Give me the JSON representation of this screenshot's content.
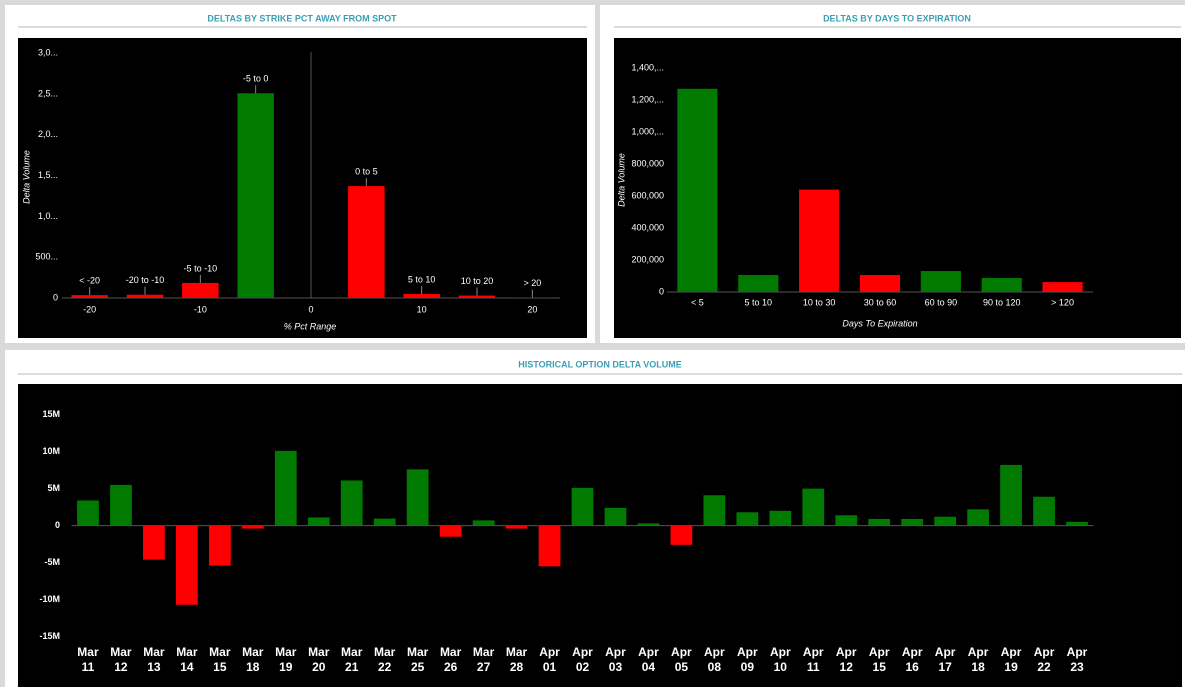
{
  "chart_data": [
    {
      "type": "bar",
      "title": "DELTAS BY STRIKE PCT AWAY FROM SPOT",
      "x": [
        -20,
        -15,
        -10,
        -5,
        5,
        10,
        15,
        20
      ],
      "values": [
        35,
        40,
        185,
        2510,
        1372,
        50,
        30,
        5
      ],
      "bar_labels": [
        "< -20",
        "-20 to -10",
        "-5 to -10",
        "-5 to 0",
        "0 to 5",
        "5 to 10",
        "10 to 20",
        "> 20"
      ],
      "colors": [
        "#ff0000",
        "#ff0000",
        "#ff0000",
        "#007a00",
        "#ff0000",
        "#ff0000",
        "#ff0000",
        "#007a00"
      ],
      "xlim": [
        -22.5,
        22.5
      ],
      "xticks": [
        -20,
        -10,
        0,
        10,
        20
      ],
      "ylim": [
        0,
        3150
      ],
      "yticks": [
        0,
        {
          "value": 500,
          "label": "500..."
        },
        {
          "value": 1000,
          "label": "1,0..."
        },
        {
          "value": 1500,
          "label": "1,5..."
        },
        {
          "value": 2000,
          "label": "2,0..."
        },
        {
          "value": 2500,
          "label": "2,5..."
        },
        {
          "value": 3000,
          "label": "3,0..."
        }
      ],
      "y_label": "Delta Volume",
      "x_label": "% Pct Range"
    },
    {
      "type": "bar",
      "title": "DELTAS BY DAYS TO EXPIRATION",
      "categories": [
        "< 5",
        "5 to 10",
        "10 to 30",
        "30 to 60",
        "60 to 90",
        "90 to 120",
        "> 120"
      ],
      "values": [
        1270000,
        106000,
        640000,
        106000,
        131000,
        88000,
        62000
      ],
      "colors": [
        "#007a00",
        "#007a00",
        "#ff0000",
        "#ff0000",
        "#007a00",
        "#007a00",
        "#ff0000"
      ],
      "ylim": [
        0,
        1575000
      ],
      "yticks": [
        0,
        {
          "value": 200000,
          "label": "200,000"
        },
        {
          "value": 400000,
          "label": "400,000"
        },
        {
          "value": 600000,
          "label": "600,000"
        },
        {
          "value": 800000,
          "label": "800,000"
        },
        {
          "value": 1000000,
          "label": "1,000,..."
        },
        {
          "value": 1200000,
          "label": "1,200,..."
        },
        {
          "value": 1400000,
          "label": "1,400,..."
        }
      ],
      "y_label": "Delta Volume",
      "x_label": "Days To Expiration"
    },
    {
      "type": "bar",
      "title": "HISTORICAL OPTION DELTA VOLUME",
      "categories": [
        "Mar 11",
        "Mar 12",
        "Mar 13",
        "Mar 14",
        "Mar 15",
        "Mar 18",
        "Mar 19",
        "Mar 20",
        "Mar 21",
        "Mar 22",
        "Mar 25",
        "Mar 26",
        "Mar 27",
        "Mar 28",
        "Apr 01",
        "Apr 02",
        "Apr 03",
        "Apr 04",
        "Apr 05",
        "Apr 08",
        "Apr 09",
        "Apr 10",
        "Apr 11",
        "Apr 12",
        "Apr 15",
        "Apr 16",
        "Apr 17",
        "Apr 18",
        "Apr 19",
        "Apr 22",
        "Apr 23"
      ],
      "values": [
        3400000,
        5500000,
        -4600000,
        -10700000,
        -5400000,
        -400000,
        10100000,
        1100000,
        6100000,
        950000,
        7600000,
        -1500000,
        700000,
        -400000,
        -5500000,
        5100000,
        2400000,
        300000,
        -2600000,
        4100000,
        1800000,
        2000000,
        5000000,
        1400000,
        900000,
        900000,
        1200000,
        2200000,
        8200000,
        3900000,
        500000
      ],
      "positive_color": "#007a00",
      "negative_color": "#ff0000",
      "ylim": [
        -16000000,
        19000000
      ],
      "yticks": [
        {
          "value": -15000000,
          "label": "-15M"
        },
        {
          "value": -10000000,
          "label": "-10M"
        },
        {
          "value": -5000000,
          "label": "-5M"
        },
        0,
        {
          "value": 5000000,
          "label": "5M"
        },
        {
          "value": 10000000,
          "label": "10M"
        },
        {
          "value": 15000000,
          "label": "15M"
        }
      ]
    }
  ]
}
